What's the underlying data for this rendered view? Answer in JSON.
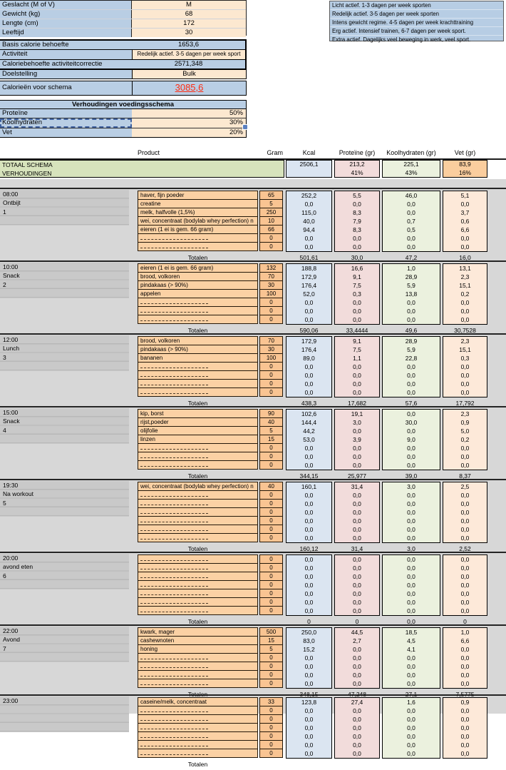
{
  "profile": {
    "rows": [
      {
        "label": "Geslacht (M of V)",
        "value": "M"
      },
      {
        "label": "Gewicht (kg)",
        "value": "68"
      },
      {
        "label": "Lengte (cm)",
        "value": "172"
      },
      {
        "label": "Leeftijd",
        "value": "30"
      }
    ]
  },
  "legend": {
    "items": [
      "Licht actief. 1-3 dagen per week sporten",
      "Redelijk actief. 3-5 dagen per week sporten",
      "Intens gewicht regime. 4-5 dagen per week krachttraining",
      "Erg actief. Intensief trainen, 6-7 dagen per week sport.",
      "Extra actief. Dagelijks veel beweging in werk, veel sport."
    ]
  },
  "calorie": {
    "rows": [
      {
        "label": "Basis calorie behoefte",
        "value": "1653,6"
      },
      {
        "label": "Activiteit",
        "value": "Redelijk actief. 3-5 dagen per week sport"
      },
      {
        "label": "Caloriebehoefte activiteitcorrectie",
        "value": "2571,348"
      }
    ]
  },
  "goal": {
    "label": "Doelstelling",
    "value": "Bulk",
    "cal_label": "Calorieën voor schema",
    "cal_value": "3085,6"
  },
  "ratios": {
    "title": "Verhoudingen voedingsschema",
    "rows": [
      {
        "label": "Proteïne",
        "value": "50%"
      },
      {
        "label": "Koolhydraten",
        "value": "30%"
      },
      {
        "label": "Vet",
        "value": "20%"
      }
    ]
  },
  "table": {
    "headers": {
      "product": "Product",
      "gram": "Gram",
      "kcal": "Kcal",
      "protein": "Proteïne (gr)",
      "carbs": "Koolhydraten (gr)",
      "fat": "Vet (gr)"
    },
    "total_label": "TOTAAL SCHEMA",
    "ratio_label": "VERHOUDINGEN",
    "totals": {
      "kcal": "2506,1",
      "protein": "213,2",
      "carbs": "225,1",
      "fat": "83,9"
    },
    "total_ratios": {
      "protein": "41%",
      "carbs": "43%",
      "fat": "16%"
    },
    "totalen_label": "Totalen"
  },
  "meals": [
    {
      "time": "08:00",
      "name": "Ontbijt",
      "num": "1",
      "rows": [
        [
          "haver, fijn poeder",
          "65",
          "252,2",
          "5,5",
          "46,0",
          "5,1"
        ],
        [
          "creatine",
          "5",
          "0,0",
          "0,0",
          "0,0",
          "0,0"
        ],
        [
          "melk, halfvolle (1,5%)",
          "250",
          "115,0",
          "8,3",
          "0,0",
          "3,7"
        ],
        [
          "wei, concentraat (bodylab whey perfection) n",
          "10",
          "40,0",
          "7,9",
          "0,7",
          "0,6"
        ],
        [
          "eieren (1 ei is gem. 66 gram)",
          "66",
          "94,4",
          "8,3",
          "0,5",
          "6,6"
        ],
        [
          "",
          "0",
          "0,0",
          "0,0",
          "0,0",
          "0,0"
        ],
        [
          "",
          "0",
          "0,0",
          "0,0",
          "0,0",
          "0,0"
        ]
      ],
      "totals": [
        "501,61",
        "30,0",
        "47,2",
        "16,0"
      ]
    },
    {
      "time": "10:00",
      "name": "Snack",
      "num": "2",
      "rows": [
        [
          "eieren (1 ei is gem. 66 gram)",
          "132",
          "188,8",
          "16,6",
          "1,0",
          "13,1"
        ],
        [
          "brood, volkoren",
          "70",
          "172,9",
          "9,1",
          "28,9",
          "2,3"
        ],
        [
          "pindakaas (> 90%)",
          "30",
          "176,4",
          "7,5",
          "5,9",
          "15,1"
        ],
        [
          "appelen",
          "100",
          "52,0",
          "0,3",
          "13,8",
          "0,2"
        ],
        [
          "",
          "0",
          "0,0",
          "0,0",
          "0,0",
          "0,0"
        ],
        [
          "",
          "0",
          "0,0",
          "0,0",
          "0,0",
          "0,0"
        ],
        [
          "",
          "0",
          "0,0",
          "0,0",
          "0,0",
          "0,0"
        ]
      ],
      "totals": [
        "590,06",
        "33,4444",
        "49,6",
        "30,7528"
      ]
    },
    {
      "time": "12:00",
      "name": "Lunch",
      "num": "3",
      "rows": [
        [
          "brood, volkoren",
          "70",
          "172,9",
          "9,1",
          "28,9",
          "2,3"
        ],
        [
          "pindakaas (> 90%)",
          "30",
          "176,4",
          "7,5",
          "5,9",
          "15,1"
        ],
        [
          "bananen",
          "100",
          "89,0",
          "1,1",
          "22,8",
          "0,3"
        ],
        [
          "",
          "0",
          "0,0",
          "0,0",
          "0,0",
          "0,0"
        ],
        [
          "",
          "0",
          "0,0",
          "0,0",
          "0,0",
          "0,0"
        ],
        [
          "",
          "0",
          "0,0",
          "0,0",
          "0,0",
          "0,0"
        ],
        [
          "",
          "0",
          "0,0",
          "0,0",
          "0,0",
          "0,0"
        ]
      ],
      "totals": [
        "438,3",
        "17,682",
        "57,6",
        "17,792"
      ]
    },
    {
      "time": "15:00",
      "name": "Snack",
      "num": "4",
      "rows": [
        [
          "kip, borst",
          "90",
          "102,6",
          "19,1",
          "0,0",
          "2,3"
        ],
        [
          "rijst,poeder",
          "40",
          "144,4",
          "3,0",
          "30,0",
          "0,9"
        ],
        [
          "olijfolie",
          "5",
          "44,2",
          "0,0",
          "0,0",
          "5,0"
        ],
        [
          "linzen",
          "15",
          "53,0",
          "3,9",
          "9,0",
          "0,2"
        ],
        [
          "",
          "0",
          "0,0",
          "0,0",
          "0,0",
          "0,0"
        ],
        [
          "",
          "0",
          "0,0",
          "0,0",
          "0,0",
          "0,0"
        ],
        [
          "",
          "0",
          "0,0",
          "0,0",
          "0,0",
          "0,0"
        ]
      ],
      "totals": [
        "344,15",
        "25,977",
        "39,0",
        "8,37"
      ]
    },
    {
      "time": "19:30",
      "name": "Na workout",
      "num": "5",
      "rows": [
        [
          "wei, concentraat (bodylab whey perfection) n",
          "40",
          "160,1",
          "31,4",
          "3,0",
          "2,5"
        ],
        [
          "",
          "0",
          "0,0",
          "0,0",
          "0,0",
          "0,0"
        ],
        [
          "",
          "0",
          "0,0",
          "0,0",
          "0,0",
          "0,0"
        ],
        [
          "",
          "0",
          "0,0",
          "0,0",
          "0,0",
          "0,0"
        ],
        [
          "",
          "0",
          "0,0",
          "0,0",
          "0,0",
          "0,0"
        ],
        [
          "",
          "0",
          "0,0",
          "0,0",
          "0,0",
          "0,0"
        ],
        [
          "",
          "0",
          "0,0",
          "0,0",
          "0,0",
          "0,0"
        ]
      ],
      "totals": [
        "160,12",
        "31,4",
        "3,0",
        "2,52"
      ]
    },
    {
      "time": "20:00",
      "name": "avond eten",
      "num": "6",
      "rows": [
        [
          "",
          "0",
          "0,0",
          "0,0",
          "0,0",
          "0,0"
        ],
        [
          "",
          "0",
          "0,0",
          "0,0",
          "0,0",
          "0,0"
        ],
        [
          "",
          "0",
          "0,0",
          "0,0",
          "0,0",
          "0,0"
        ],
        [
          "",
          "0",
          "0,0",
          "0,0",
          "0,0",
          "0,0"
        ],
        [
          "",
          "0",
          "0,0",
          "0,0",
          "0,0",
          "0,0"
        ],
        [
          "",
          "0",
          "0,0",
          "0,0",
          "0,0",
          "0,0"
        ],
        [
          "",
          "0",
          "0,0",
          "0,0",
          "0,0",
          "0,0"
        ]
      ],
      "totals": [
        "0",
        "0",
        "0,0",
        "0"
      ]
    },
    {
      "time": "22:00",
      "name": "Avond",
      "num": "7",
      "rows": [
        [
          "kwark, mager",
          "500",
          "250,0",
          "44,5",
          "18,5",
          "1,0"
        ],
        [
          "cashewnoten",
          "15",
          "83,0",
          "2,7",
          "4,5",
          "6,6"
        ],
        [
          "honing",
          "5",
          "15,2",
          "0,0",
          "4,1",
          "0,0"
        ],
        [
          "",
          "0",
          "0,0",
          "0,0",
          "0,0",
          "0,0"
        ],
        [
          "",
          "0",
          "0,0",
          "0,0",
          "0,0",
          "0,0"
        ],
        [
          "",
          "0",
          "0,0",
          "0,0",
          "0,0",
          "0,0"
        ],
        [
          "",
          "0",
          "0,0",
          "0,0",
          "0,0",
          "0,0"
        ]
      ],
      "totals": [
        "348,15",
        "47,248",
        "27,1",
        "7,5775"
      ]
    },
    {
      "time": "23:00",
      "name": "",
      "num": "",
      "rows": [
        [
          "caseine/melk, concentraat",
          "33",
          "123,8",
          "27,4",
          "1,6",
          "0,9"
        ],
        [
          "",
          "0",
          "0,0",
          "0,0",
          "0,0",
          "0,0"
        ],
        [
          "",
          "0",
          "0,0",
          "0,0",
          "0,0",
          "0,0"
        ],
        [
          "",
          "0",
          "0,0",
          "0,0",
          "0,0",
          "0,0"
        ],
        [
          "",
          "0",
          "0,0",
          "0,0",
          "0,0",
          "0,0"
        ],
        [
          "",
          "0",
          "0,0",
          "0,0",
          "0,0",
          "0,0"
        ],
        [
          "",
          "0",
          "0,0",
          "0,0",
          "0,0",
          "0,0"
        ]
      ],
      "totals": [
        "",
        "",
        "",
        ""
      ]
    }
  ],
  "colors": {
    "label_blue": "#B9CEE4",
    "value_cream": "#FCE8D0",
    "product_orange": "#FBD1A4",
    "gram_orange": "#F9C492",
    "kcal_blue": "#DBE5F1",
    "protein_pink": "#F2DCDB",
    "carb_green": "#EBF1DE",
    "fat_peach": "#FDE9D9",
    "total_green": "#D7E3BC",
    "calorie_red": "#FF2D12"
  }
}
